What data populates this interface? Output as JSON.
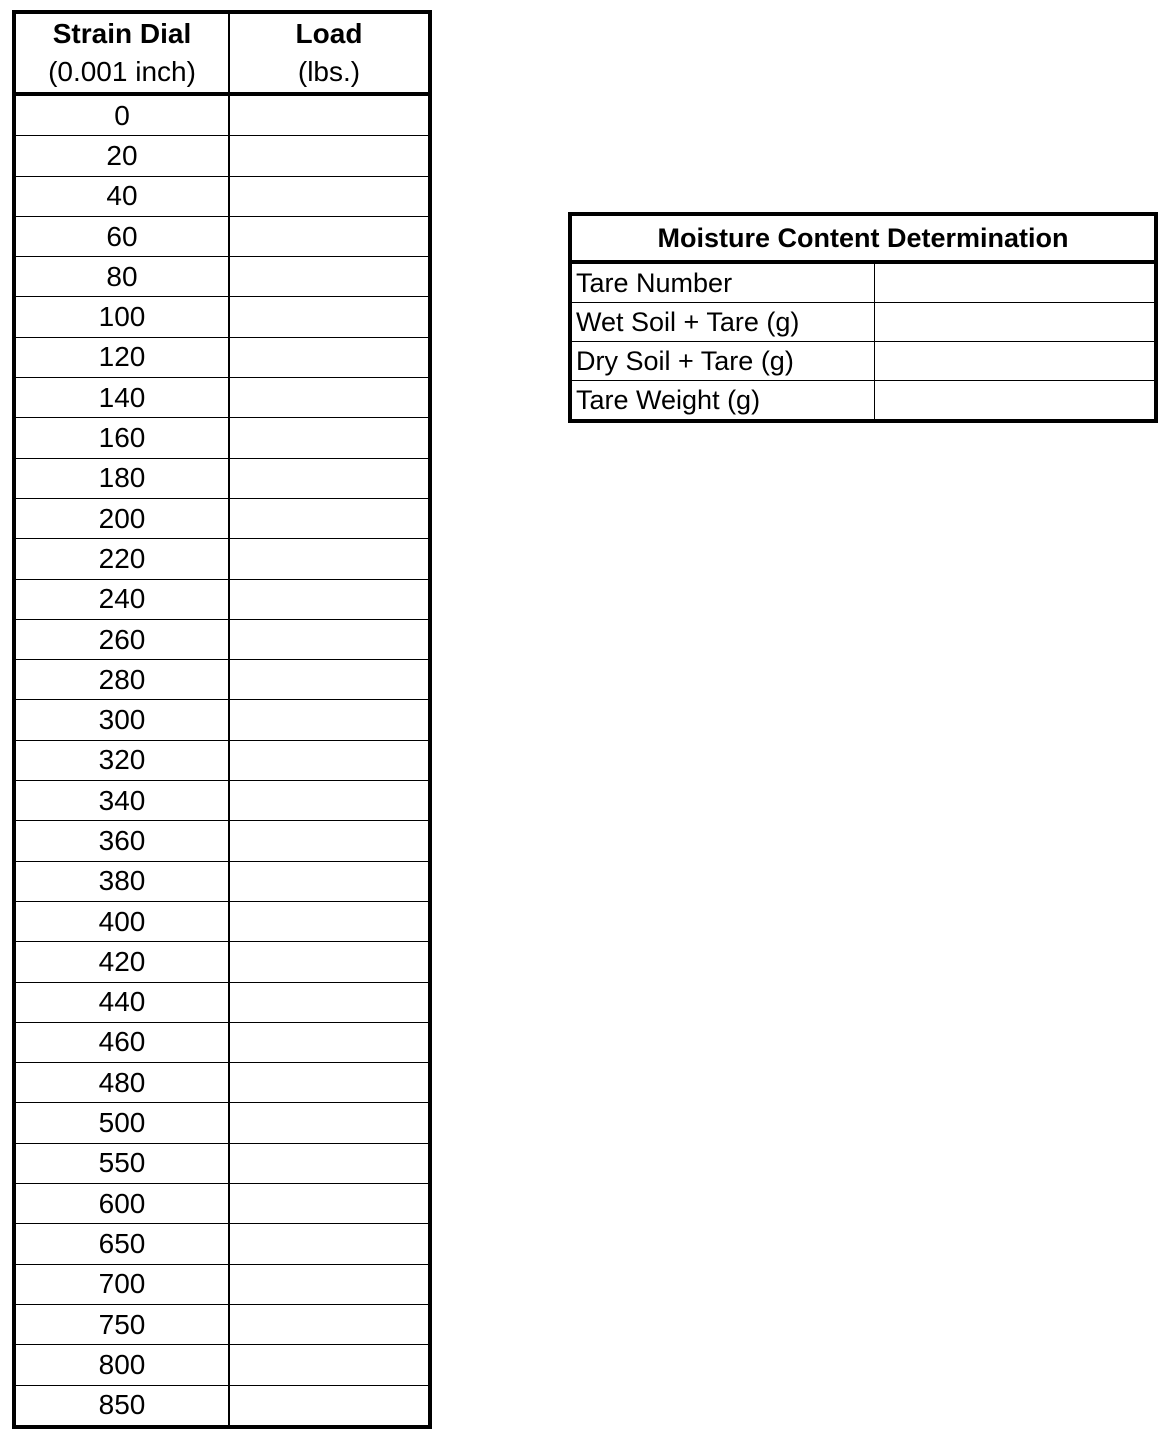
{
  "strain_table": {
    "headers": [
      {
        "title": "Strain Dial",
        "unit": "(0.001 inch)"
      },
      {
        "title": "Load",
        "unit": "(lbs.)"
      }
    ],
    "strain_values": [
      "0",
      "20",
      "40",
      "60",
      "80",
      "100",
      "120",
      "140",
      "160",
      "180",
      "200",
      "220",
      "240",
      "260",
      "280",
      "300",
      "320",
      "340",
      "360",
      "380",
      "400",
      "420",
      "440",
      "460",
      "480",
      "500",
      "550",
      "600",
      "650",
      "700",
      "750",
      "800",
      "850"
    ]
  },
  "moisture_table": {
    "title": "Moisture Content Determination",
    "rows": [
      "Tare Number",
      "Wet Soil + Tare (g)",
      "Dry Soil + Tare (g)",
      "Tare Weight (g)"
    ]
  }
}
